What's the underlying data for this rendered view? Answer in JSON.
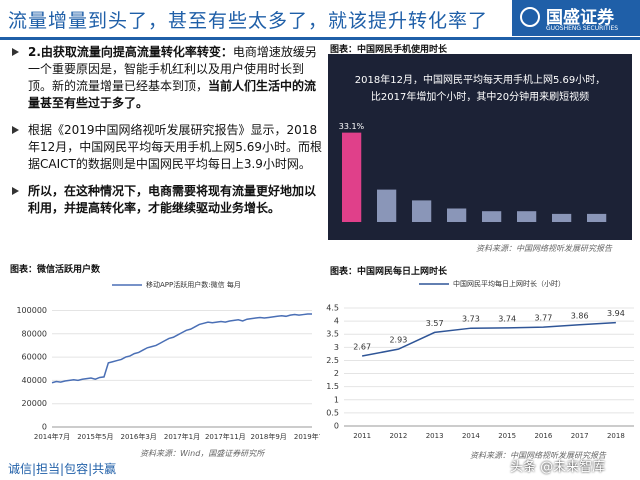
{
  "header": {
    "title": "流量增量到头了，甚至有些太多了，就该提升转化率了",
    "logo": "国盛证券",
    "logo_sub": "GUOSHENG SECURITIES"
  },
  "bullets": [
    {
      "parts": [
        {
          "text": "2.由获取流量向提高流量转化率转变：",
          "bold": true
        },
        {
          "text": "电商增速放缓另一个重要原因是，智能手机红利以及用户使用时长到顶。新的流量增量已经基本到顶，",
          "bold": false
        },
        {
          "text": "当前人们生活中的流量甚至有些过于多了。",
          "bold": true
        }
      ]
    },
    {
      "parts": [
        {
          "text": "根据《2019中国网络视听发展研究报告》显示，2018年12月，中国网民平均每天用手机上网5.69小时。而根据CAICT的数据则是中国网民平均每日上3.9小时网。",
          "bold": false
        }
      ]
    },
    {
      "parts": [
        {
          "text": "所以，在这种情况下，电商需要将现有流量更好地加以利用，并提高转化率，才能继续驱动业务增长。",
          "bold": true
        }
      ]
    }
  ],
  "photo_chart": {
    "type": "bar",
    "caption": "图表：中国网民手机使用时长",
    "headline": [
      "2018年12月，中国网民平均每天用手机上网5.69小时，",
      "比2017年增加个小时，其中20分钟用来刷短视频"
    ],
    "values": [
      33.1,
      12,
      8,
      5,
      4,
      4,
      3,
      3
    ],
    "value_labels": [
      "33.1%",
      null,
      null,
      null,
      null,
      null,
      null,
      null
    ],
    "ylim": [
      0,
      40
    ],
    "colors": [
      "#e0408a",
      "#8a96b8",
      "#8a96b8",
      "#8a96b8",
      "#8a96b8",
      "#8a96b8",
      "#8a96b8",
      "#8a96b8"
    ],
    "source": "资料来源：中国网络视听发展研究报告"
  },
  "chart_data": [
    {
      "type": "line",
      "caption": "图表：微信活跃用户数",
      "legend": "移动APP活跃用户数:微信 每月",
      "color": "#4a6fb5",
      "categories": [
        "2014年7月",
        null,
        null,
        null,
        null,
        null,
        null,
        null,
        null,
        null,
        "2015年5月",
        null,
        null,
        null,
        null,
        null,
        null,
        null,
        null,
        null,
        "2016年3月",
        null,
        null,
        null,
        null,
        null,
        null,
        null,
        null,
        null,
        "2017年1月",
        null,
        null,
        null,
        null,
        null,
        null,
        null,
        null,
        null,
        "2017年11月",
        null,
        null,
        null,
        null,
        null,
        null,
        null,
        null,
        null,
        "2018年9月",
        null,
        null,
        null,
        null,
        null,
        null,
        null,
        null,
        null,
        "2019年7月"
      ],
      "values": [
        38000,
        39000,
        38500,
        39500,
        40000,
        40500,
        40000,
        41000,
        41500,
        42000,
        41000,
        42500,
        43000,
        55000,
        56000,
        57000,
        58000,
        60000,
        61000,
        63000,
        64000,
        66000,
        68000,
        69000,
        70000,
        72000,
        74000,
        76000,
        77000,
        79000,
        81000,
        83000,
        84000,
        86000,
        88000,
        89000,
        90000,
        89500,
        90000,
        90500,
        90000,
        91000,
        91500,
        92000,
        91000,
        92500,
        93000,
        93500,
        94000,
        93500,
        94000,
        94500,
        95000,
        95500,
        95000,
        96000,
        96500,
        96000,
        96500,
        97000,
        97000
      ],
      "ylim": [
        0,
        115000
      ],
      "yticks": [
        0,
        20000,
        40000,
        60000,
        80000,
        100000
      ],
      "source": "资料来源：Wind，国盛证券研究所"
    },
    {
      "type": "line",
      "caption": "图表：中国网民每日上网时长",
      "legend": "中国网民平均每日上网时长（小时）",
      "color": "#2f5597",
      "categories": [
        "2011",
        "2012",
        "2013",
        "2014",
        "2015",
        "2016",
        "2017",
        "2018"
      ],
      "values": [
        2.67,
        2.93,
        3.57,
        3.73,
        3.74,
        3.77,
        3.86,
        3.94
      ],
      "ylim": [
        0,
        4.5
      ],
      "yticks": [
        0,
        0.5,
        1,
        1.5,
        2,
        2.5,
        3,
        3.5,
        4,
        4.5
      ],
      "data_labels": true,
      "source": "资料来源：中国网络视听发展研究报告"
    }
  ],
  "footer": "诚信|担当|包容|共赢",
  "watermark": "头条 @未来智库"
}
